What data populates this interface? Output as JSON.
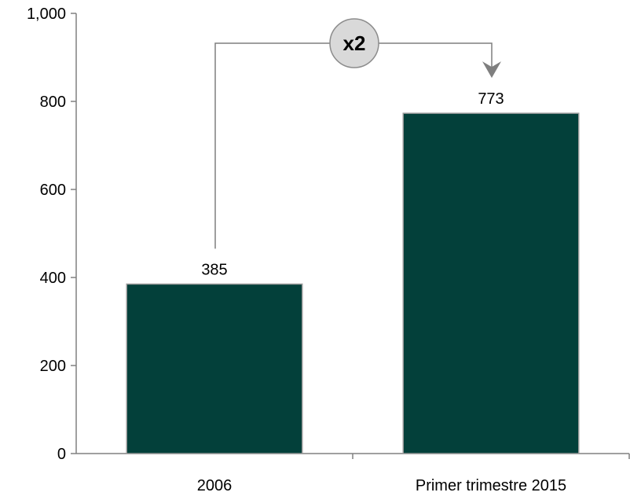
{
  "chart_data": {
    "type": "bar",
    "categories": [
      "2006",
      "Primer trimestre 2015"
    ],
    "values": [
      385,
      773
    ],
    "data_labels": [
      "385",
      "773"
    ],
    "ylim": [
      0,
      1000
    ],
    "yticks": [
      0,
      200,
      400,
      600,
      800,
      1000
    ],
    "ytick_labels": [
      "0",
      "200",
      "400",
      "600",
      "800",
      "1,000"
    ],
    "grid": false,
    "legend": "none",
    "annotation": {
      "text": "x2",
      "from_category": "2006",
      "to_category": "Primer trimestre 2015"
    },
    "colors": {
      "bar": "#03403A",
      "bar_edge": "#9A9A9A",
      "axis": "#808080",
      "connector": "#7F7F7F",
      "badge_fill": "#D9D9D9",
      "badge_edge": "#8C8C8C"
    }
  }
}
